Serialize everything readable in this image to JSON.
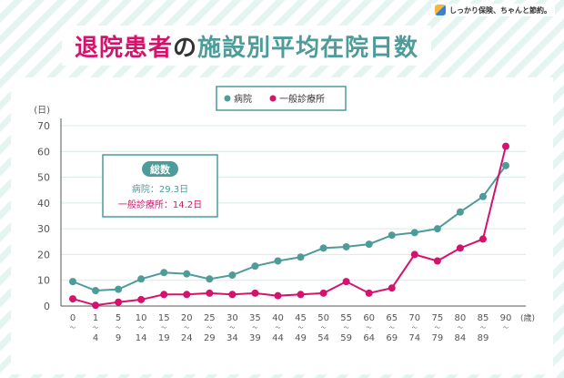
{
  "brand": {
    "name": "しっかり保険、ちゃんと節約。",
    "logo_icon": "brand-logo-icon"
  },
  "title": {
    "part1": "退院患者",
    "part2": "の",
    "part3": "施設別平均在院日数"
  },
  "colors": {
    "hospital": "#4d9c9a",
    "clinic": "#d4136d",
    "grid": "#d6ebe9",
    "axis": "#555555",
    "title_main": "#d4136d",
    "title_sub": "#4d9c9a"
  },
  "chart_data": {
    "type": "line",
    "yunit": "(日)",
    "xunit": "(歳)",
    "ylim": [
      0,
      70
    ],
    "yticks": [
      0,
      10,
      20,
      30,
      40,
      50,
      60,
      70
    ],
    "grid": true,
    "legend_position": "top-center",
    "categories": [
      "0〜",
      "1〜4",
      "5〜9",
      "10〜14",
      "15〜19",
      "20〜24",
      "25〜29",
      "30〜34",
      "35〜39",
      "40〜44",
      "45〜49",
      "50〜54",
      "55〜59",
      "60〜64",
      "65〜69",
      "70〜74",
      "75〜79",
      "80〜84",
      "85〜89",
      "90〜"
    ],
    "x_labels_top": [
      "0",
      "1",
      "5",
      "10",
      "15",
      "20",
      "25",
      "30",
      "35",
      "40",
      "45",
      "50",
      "55",
      "60",
      "65",
      "70",
      "75",
      "80",
      "85",
      "90"
    ],
    "x_labels_bottom": [
      "",
      "4",
      "9",
      "14",
      "19",
      "24",
      "29",
      "34",
      "39",
      "44",
      "49",
      "54",
      "59",
      "64",
      "69",
      "74",
      "79",
      "84",
      "89",
      ""
    ],
    "series": [
      {
        "name": "病院",
        "color": "#4d9c9a",
        "values": [
          9.5,
          6,
          6.5,
          10.5,
          13,
          12.5,
          10.5,
          12,
          15.5,
          17.5,
          19,
          22.5,
          23,
          24,
          27.5,
          28.5,
          30,
          36.5,
          42.5,
          54.5
        ]
      },
      {
        "name": "一般診療所",
        "color": "#d4136d",
        "values": [
          2.8,
          0.3,
          1.5,
          2.5,
          4.5,
          4.5,
          5,
          4.5,
          5,
          4,
          4.5,
          5,
          9.5,
          5,
          7,
          20,
          17.5,
          22.5,
          26,
          62
        ]
      }
    ],
    "summary": {
      "heading": "総数",
      "hospital_text": "病院：29.3日",
      "clinic_text": "一般診療所：14.2日"
    }
  }
}
